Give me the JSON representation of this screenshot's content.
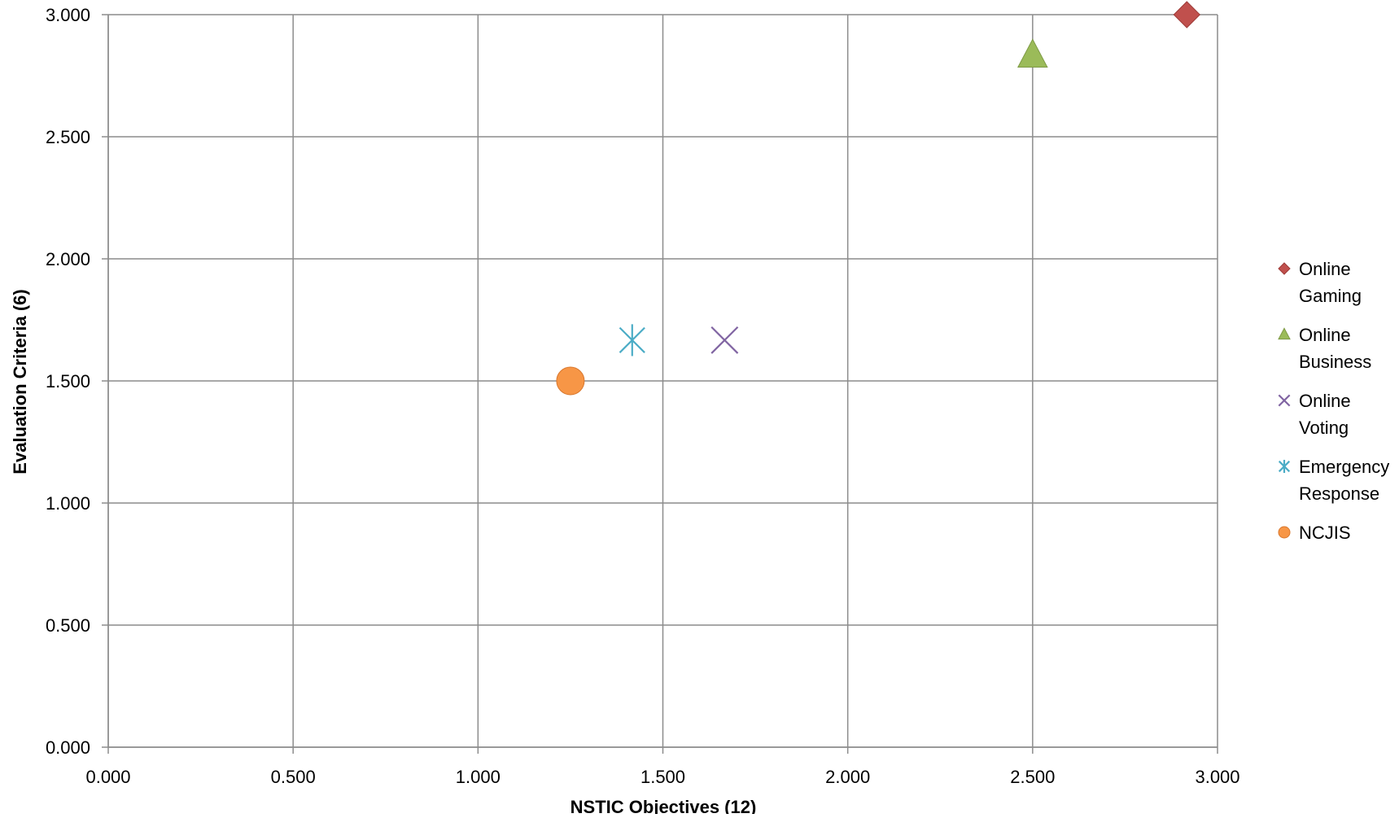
{
  "chart_data": {
    "type": "scatter",
    "title": "",
    "xlabel": "NSTIC Objectives (12)",
    "ylabel": "Evaluation Criteria (6)",
    "xlim": [
      0,
      3
    ],
    "ylim": [
      0,
      3
    ],
    "x_ticks": [
      "0.000",
      "0.500",
      "1.000",
      "1.500",
      "2.000",
      "2.500",
      "3.000"
    ],
    "y_ticks": [
      "0.000",
      "0.500",
      "1.000",
      "1.500",
      "2.000",
      "2.500",
      "3.000"
    ],
    "grid": true,
    "legend_position": "right",
    "series": [
      {
        "name": "Online Gaming",
        "legend_lines": [
          "Online",
          "Gaming"
        ],
        "marker": "diamond",
        "color": "#C0504D",
        "points": [
          {
            "x": 2.917,
            "y": 3.0
          }
        ]
      },
      {
        "name": "Online Business",
        "legend_lines": [
          "Online",
          "Business"
        ],
        "marker": "triangle",
        "color": "#9BBB59",
        "points": [
          {
            "x": 2.5,
            "y": 2.833
          }
        ]
      },
      {
        "name": "Online Voting",
        "legend_lines": [
          "Online",
          "Voting"
        ],
        "marker": "x",
        "color": "#8064A2",
        "points": [
          {
            "x": 1.667,
            "y": 1.667
          }
        ]
      },
      {
        "name": "Emergency Response",
        "legend_lines": [
          "Emergency",
          "Response"
        ],
        "marker": "asterisk",
        "color": "#4BACC6",
        "points": [
          {
            "x": 1.417,
            "y": 1.667
          }
        ]
      },
      {
        "name": "NCJIS",
        "legend_lines": [
          "NCJIS"
        ],
        "marker": "circle",
        "color": "#F79646",
        "points": [
          {
            "x": 1.25,
            "y": 1.5
          }
        ]
      }
    ]
  }
}
